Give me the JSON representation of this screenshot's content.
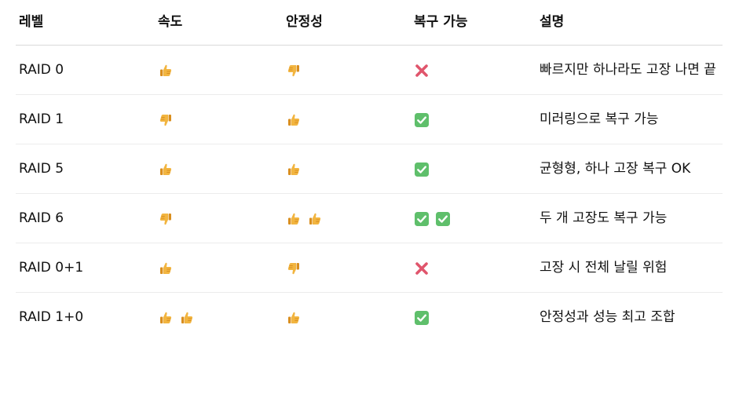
{
  "headers": [
    "레벨",
    "속도",
    "안정성",
    "복구 가능",
    "설명"
  ],
  "rows": [
    {
      "level": "RAID 0",
      "speed": [
        "thumbs-up"
      ],
      "stability": [
        "thumbs-down"
      ],
      "recovery": [
        "cross-mark"
      ],
      "description": "빠르지만 하나라도 고장 나면 끝"
    },
    {
      "level": "RAID 1",
      "speed": [
        "thumbs-down"
      ],
      "stability": [
        "thumbs-up"
      ],
      "recovery": [
        "check-mark"
      ],
      "description": "미러링으로 복구 가능"
    },
    {
      "level": "RAID 5",
      "speed": [
        "thumbs-up"
      ],
      "stability": [
        "thumbs-up"
      ],
      "recovery": [
        "check-mark"
      ],
      "description": "균형형, 하나 고장 복구 OK"
    },
    {
      "level": "RAID 6",
      "speed": [
        "thumbs-down"
      ],
      "stability": [
        "thumbs-up",
        "thumbs-up"
      ],
      "recovery": [
        "check-mark",
        "check-mark"
      ],
      "description": "두 개 고장도 복구 가능"
    },
    {
      "level": "RAID 0+1",
      "speed": [
        "thumbs-up"
      ],
      "stability": [
        "thumbs-down"
      ],
      "recovery": [
        "cross-mark"
      ],
      "description": "고장 시 전체 날릴 위험"
    },
    {
      "level": "RAID 1+0",
      "speed": [
        "thumbs-up",
        "thumbs-up"
      ],
      "stability": [
        "thumbs-up"
      ],
      "recovery": [
        "check-mark"
      ],
      "description": "안정성과 성능 최고 조합"
    }
  ],
  "colors": {
    "thumb": "#F2B540",
    "thumb_shade": "#D98E1E",
    "cross": "#E0556C",
    "check_bg": "#5FBF6B",
    "check_mark": "#ffffff"
  }
}
